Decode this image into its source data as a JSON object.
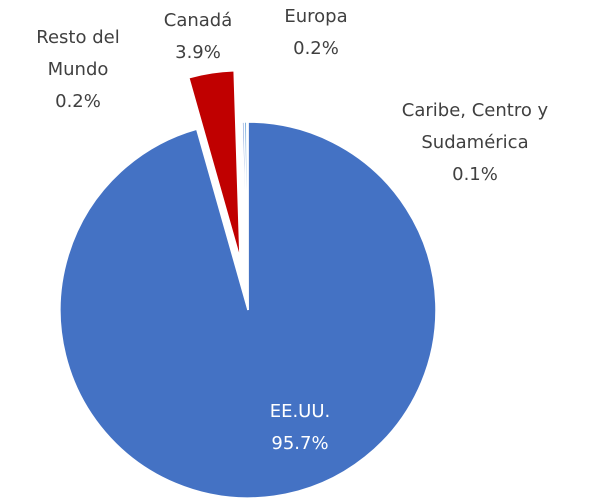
{
  "chart_data": {
    "type": "pie",
    "categories": [
      "EE.UU.",
      "Canadá",
      "Resto del Mundo",
      "Europa",
      "Caribe, Centro y Sudamérica"
    ],
    "values": [
      95.7,
      3.9,
      0.2,
      0.2,
      0.1
    ],
    "value_labels": [
      "95.7%",
      "3.9%",
      "0.2%",
      "0.2%",
      "0.1%"
    ],
    "colors": [
      "#4472c4",
      "#c00000",
      "#8faadc",
      "#5b9bd5",
      "#2f5597"
    ],
    "exploded": "Canadá"
  }
}
